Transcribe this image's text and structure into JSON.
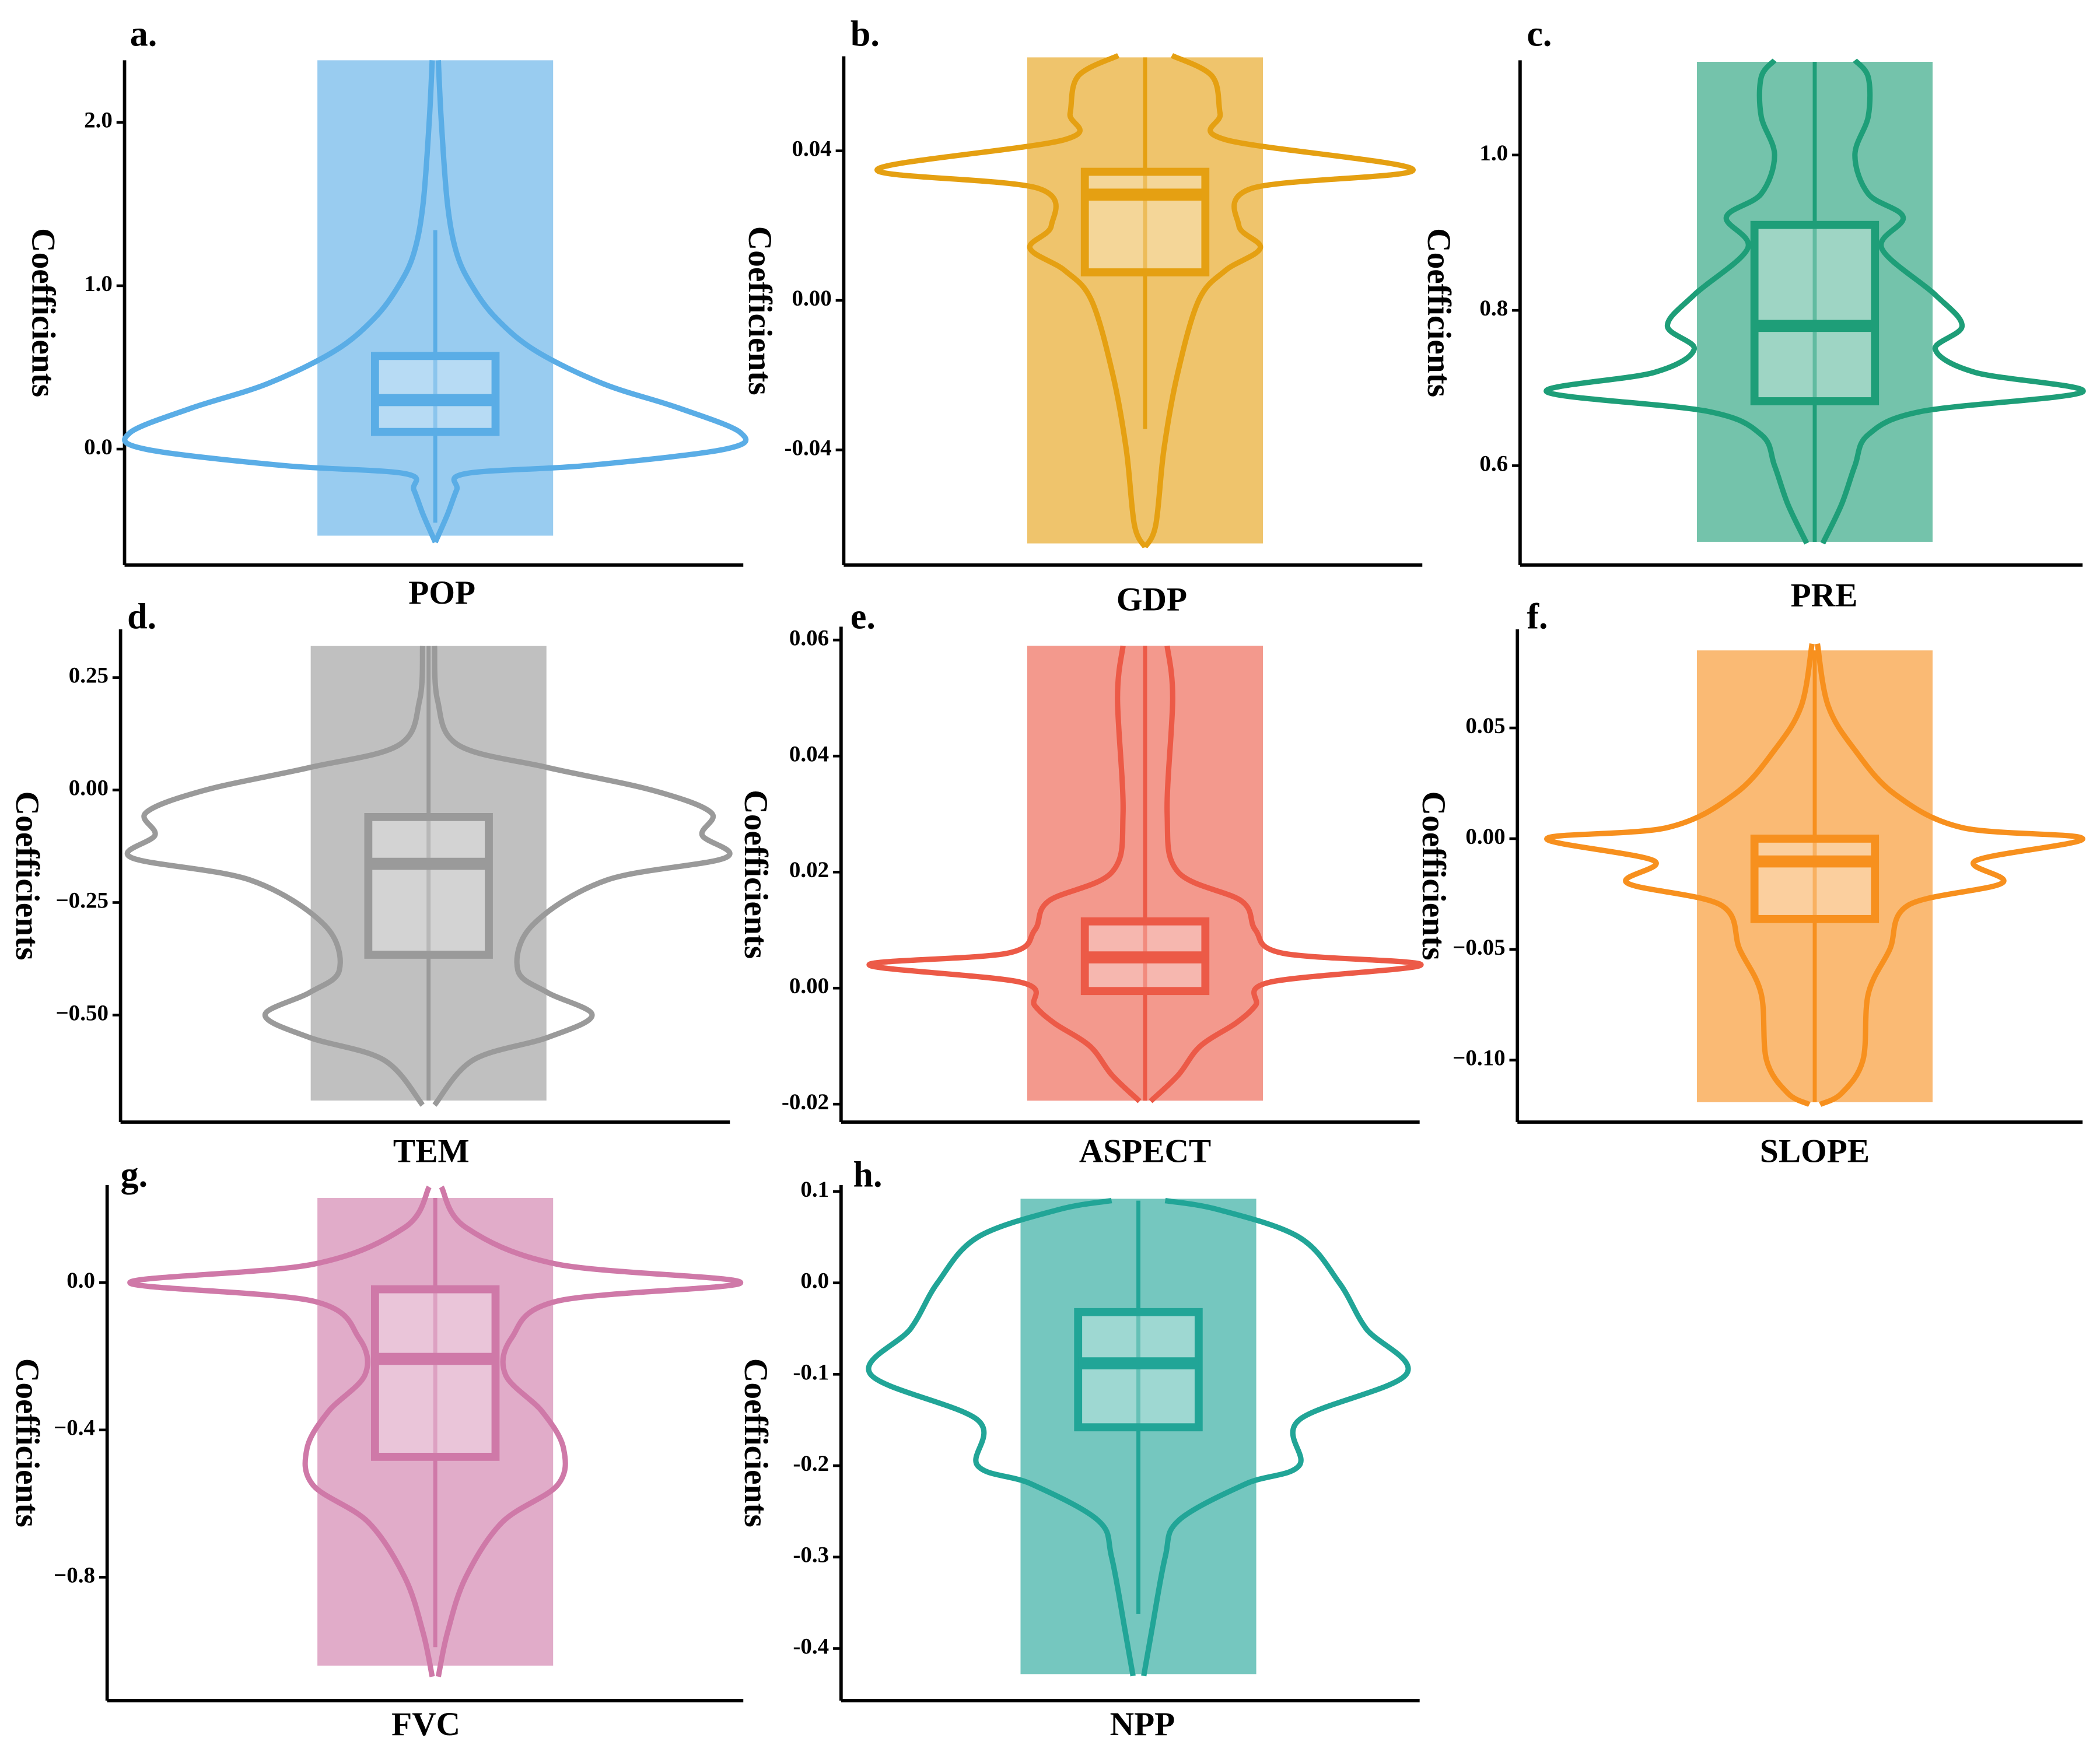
{
  "chart_data": [
    {
      "type": "violin",
      "label": "a.",
      "xlabel": "POP",
      "ylabel": "Coefficients",
      "color": "#5aade6",
      "ylim": [
        -0.71,
        2.38
      ],
      "yticks": [
        {
          "value": 0,
          "label": "0.0"
        },
        {
          "value": 1,
          "label": "1.0"
        },
        {
          "value": 2,
          "label": "2.0"
        }
      ],
      "range": [
        -0.53,
        2.38
      ],
      "box": {
        "whislo": -0.45,
        "q1": 0.105,
        "median": 0.3,
        "q3": 0.57,
        "whishi": 1.34
      },
      "violin": {
        "y": [
          2.38,
          2.0,
          1.5,
          1.2,
          1.0,
          0.8,
          0.6,
          0.4,
          0.25,
          0.1,
          0.0,
          -0.1,
          -0.15,
          -0.25,
          -0.4,
          -0.57
        ],
        "width": [
          0.01,
          0.02,
          0.04,
          0.07,
          0.12,
          0.2,
          0.33,
          0.55,
          0.8,
          1.0,
          0.95,
          0.5,
          0.1,
          0.07,
          0.04,
          0.0
        ]
      }
    },
    {
      "type": "violin",
      "label": "b.",
      "xlabel": "GDP",
      "ylabel": "Coefficients",
      "color": "#e5a012",
      "ylim": [
        -0.0708,
        0.0653
      ],
      "yticks": [
        -0.04,
        {
          "value": 0,
          "label": "0.00"
        },
        0.04
      ],
      "range": [
        -0.065,
        0.065
      ],
      "box": {
        "whislo": -0.0344,
        "q1": 0.0075,
        "median": 0.0283,
        "q3": 0.0344,
        "whishi": 0.065
      },
      "violin": {
        "y": [
          0.0655,
          0.06,
          0.05,
          0.043,
          0.035,
          0.03,
          0.02,
          0.014,
          0.008,
          0.0,
          -0.02,
          -0.04,
          -0.06,
          -0.066
        ],
        "width": [
          0.1,
          0.25,
          0.28,
          0.3,
          1.0,
          0.4,
          0.35,
          0.43,
          0.3,
          0.2,
          0.12,
          0.07,
          0.04,
          0.0
        ]
      }
    },
    {
      "type": "violin",
      "label": "c.",
      "xlabel": "PRE",
      "ylabel": "Coefficients",
      "color": "#1e9e78",
      "ylim": [
        0.472,
        1.122
      ],
      "yticks": [
        0.6,
        0.8,
        {
          "value": 1,
          "label": "1.0"
        }
      ],
      "range": [
        0.502,
        1.12
      ],
      "box": {
        "whislo": 0.502,
        "q1": 0.683,
        "median": 0.78,
        "q3": 0.91,
        "whishi": 1.12
      },
      "violin": {
        "y": [
          1.122,
          1.1,
          1.05,
          1.0,
          0.95,
          0.92,
          0.88,
          0.82,
          0.78,
          0.75,
          0.72,
          0.695,
          0.67,
          0.64,
          0.6,
          0.55,
          0.5
        ],
        "width": [
          0.15,
          0.2,
          0.2,
          0.15,
          0.2,
          0.33,
          0.25,
          0.45,
          0.55,
          0.45,
          0.6,
          1.0,
          0.4,
          0.2,
          0.15,
          0.1,
          0.03
        ]
      }
    },
    {
      "type": "violin",
      "label": "d.",
      "xlabel": "TEM",
      "ylabel": "Coefficients",
      "color": "#9a9a9a",
      "ylim": [
        -0.738,
        0.357
      ],
      "yticks": [
        {
          "value": -0.5,
          "label": "−0.50"
        },
        {
          "value": -0.25,
          "label": "−0.25"
        },
        {
          "value": 0,
          "label": "0.00"
        },
        0.25
      ],
      "range": [
        -0.69,
        0.32
      ],
      "box": {
        "whislo": -0.69,
        "q1": -0.366,
        "median": -0.164,
        "q3": -0.06,
        "whishi": 0.32
      },
      "violin": {
        "y": [
          0.32,
          0.2,
          0.1,
          0.05,
          0.0,
          -0.05,
          -0.1,
          -0.15,
          -0.2,
          -0.3,
          -0.4,
          -0.45,
          -0.5,
          -0.55,
          -0.6,
          -0.7
        ],
        "width": [
          0.02,
          0.03,
          0.1,
          0.4,
          0.75,
          0.95,
          0.92,
          1.0,
          0.6,
          0.35,
          0.3,
          0.4,
          0.55,
          0.4,
          0.15,
          0.02
        ]
      }
    },
    {
      "type": "violin",
      "label": "e.",
      "xlabel": "ASPECT",
      "ylabel": "Coefficients",
      "color": "#ec5a47",
      "ylim": [
        -0.0231,
        0.0623
      ],
      "yticks": [
        -0.02,
        {
          "value": 0,
          "label": "0.00"
        },
        0.02,
        0.04,
        0.06
      ],
      "range": [
        -0.0194,
        0.059
      ],
      "box": {
        "whislo": -0.0194,
        "q1": -0.0005,
        "median": 0.0053,
        "q3": 0.0115,
        "whishi": 0.059
      },
      "violin": {
        "y": [
          0.059,
          0.05,
          0.03,
          0.02,
          0.015,
          0.01,
          0.006,
          0.004,
          0.001,
          -0.003,
          -0.006,
          -0.01,
          -0.015,
          -0.0195
        ],
        "width": [
          0.08,
          0.1,
          0.08,
          0.12,
          0.35,
          0.4,
          0.5,
          1.0,
          0.45,
          0.4,
          0.33,
          0.2,
          0.12,
          0.02
        ]
      }
    },
    {
      "type": "violin",
      "label": "f.",
      "xlabel": "SLOPE",
      "ylabel": "Coefficients",
      "color": "#f7901e",
      "ylim": [
        -0.128,
        0.0945
      ],
      "yticks": [
        {
          "value": -0.1,
          "label": "−0.10"
        },
        {
          "value": -0.05,
          "label": "−0.05"
        },
        {
          "value": 0,
          "label": "0.00"
        },
        0.05
      ],
      "range": [
        -0.119,
        0.085
      ],
      "box": {
        "whislo": -0.119,
        "q1": -0.0363,
        "median": -0.0103,
        "q3": 0.0,
        "whishi": 0.085
      },
      "violin": {
        "y": [
          0.088,
          0.06,
          0.04,
          0.02,
          0.005,
          0.0,
          -0.01,
          -0.02,
          -0.03,
          -0.05,
          -0.07,
          -0.1,
          -0.115,
          -0.12
        ],
        "width": [
          0.01,
          0.05,
          0.15,
          0.3,
          0.55,
          1.0,
          0.6,
          0.7,
          0.35,
          0.28,
          0.2,
          0.18,
          0.1,
          0.02
        ]
      }
    },
    {
      "type": "violin",
      "label": "g.",
      "xlabel": "FVC",
      "ylabel": "Coefficients",
      "color": "#cf79a8",
      "ylim": [
        -1.135,
        0.265
      ],
      "yticks": [
        {
          "value": -0.8,
          "label": "−0.8"
        },
        {
          "value": -0.4,
          "label": "−0.4"
        },
        {
          "value": 0,
          "label": "0.0"
        }
      ],
      "range": [
        -1.04,
        0.23
      ],
      "box": {
        "whislo": -0.99,
        "q1": -0.473,
        "median": -0.207,
        "q3": -0.018,
        "whishi": 0.23
      },
      "violin": {
        "y": [
          0.26,
          0.15,
          0.05,
          0.0,
          -0.05,
          -0.15,
          -0.25,
          -0.35,
          -0.45,
          -0.55,
          -0.65,
          -0.8,
          -0.95,
          -1.07
        ],
        "width": [
          0.02,
          0.1,
          0.4,
          1.0,
          0.4,
          0.25,
          0.23,
          0.35,
          0.42,
          0.4,
          0.22,
          0.1,
          0.04,
          0.01
        ]
      }
    },
    {
      "type": "violin",
      "label": "h.",
      "xlabel": "NPP",
      "ylabel": "Coefficients",
      "color": "#21a597",
      "ylim": [
        -0.457,
        0.107
      ],
      "yticks": [
        -0.4,
        -0.3,
        -0.2,
        -0.1,
        {
          "value": 0,
          "label": "0.0"
        },
        0.1
      ],
      "range": [
        -0.428,
        0.092
      ],
      "box": {
        "whislo": -0.362,
        "q1": -0.158,
        "median": -0.088,
        "q3": -0.032,
        "whishi": 0.09
      },
      "violin": {
        "y": [
          0.09,
          0.08,
          0.05,
          0.0,
          -0.05,
          -0.1,
          -0.15,
          -0.2,
          -0.22,
          -0.26,
          -0.3,
          -0.38,
          -0.43
        ],
        "width": [
          0.1,
          0.3,
          0.6,
          0.75,
          0.85,
          1.0,
          0.6,
          0.6,
          0.4,
          0.15,
          0.1,
          0.05,
          0.02
        ]
      }
    }
  ]
}
